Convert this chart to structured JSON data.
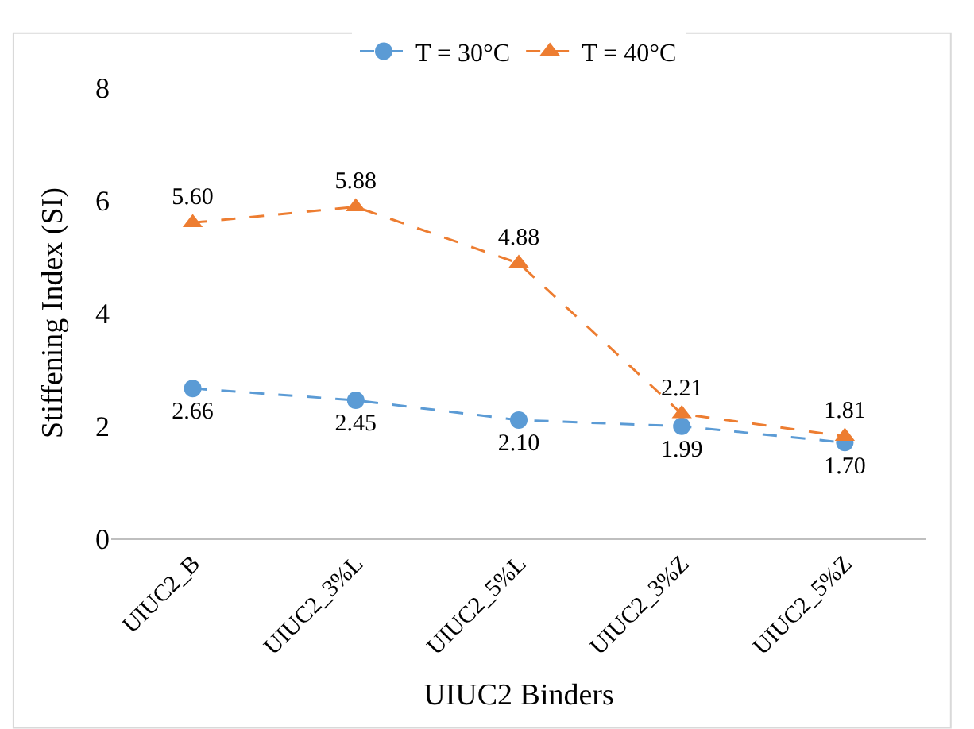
{
  "chart_data": {
    "type": "line",
    "xlabel": "UIUC2 Binders",
    "ylabel": "Stiffening Index (SI)",
    "categories": [
      "UIUC2_B",
      "UIUC2_3%L",
      "UIUC2_5%L",
      "UIUC2_3%Z",
      "UIUC2_5%Z"
    ],
    "series": [
      {
        "name": "T = 30°C",
        "color": "#5b9bd5",
        "marker": "circle",
        "line_style": "dashed",
        "values": [
          2.66,
          2.45,
          2.1,
          1.99,
          1.7
        ],
        "value_labels": [
          "2.66",
          "2.45",
          "2.10",
          "1.99",
          "1.70"
        ]
      },
      {
        "name": "T = 40°C",
        "color": "#ed7d31",
        "marker": "triangle",
        "line_style": "dashed",
        "values": [
          5.6,
          5.88,
          4.88,
          2.21,
          1.81
        ],
        "value_labels": [
          "5.60",
          "5.88",
          "4.88",
          "2.21",
          "1.81"
        ]
      }
    ],
    "ylim": [
      0,
      8
    ],
    "yticks": [
      0,
      2,
      4,
      6,
      8
    ],
    "grid": false,
    "legend": "top"
  }
}
